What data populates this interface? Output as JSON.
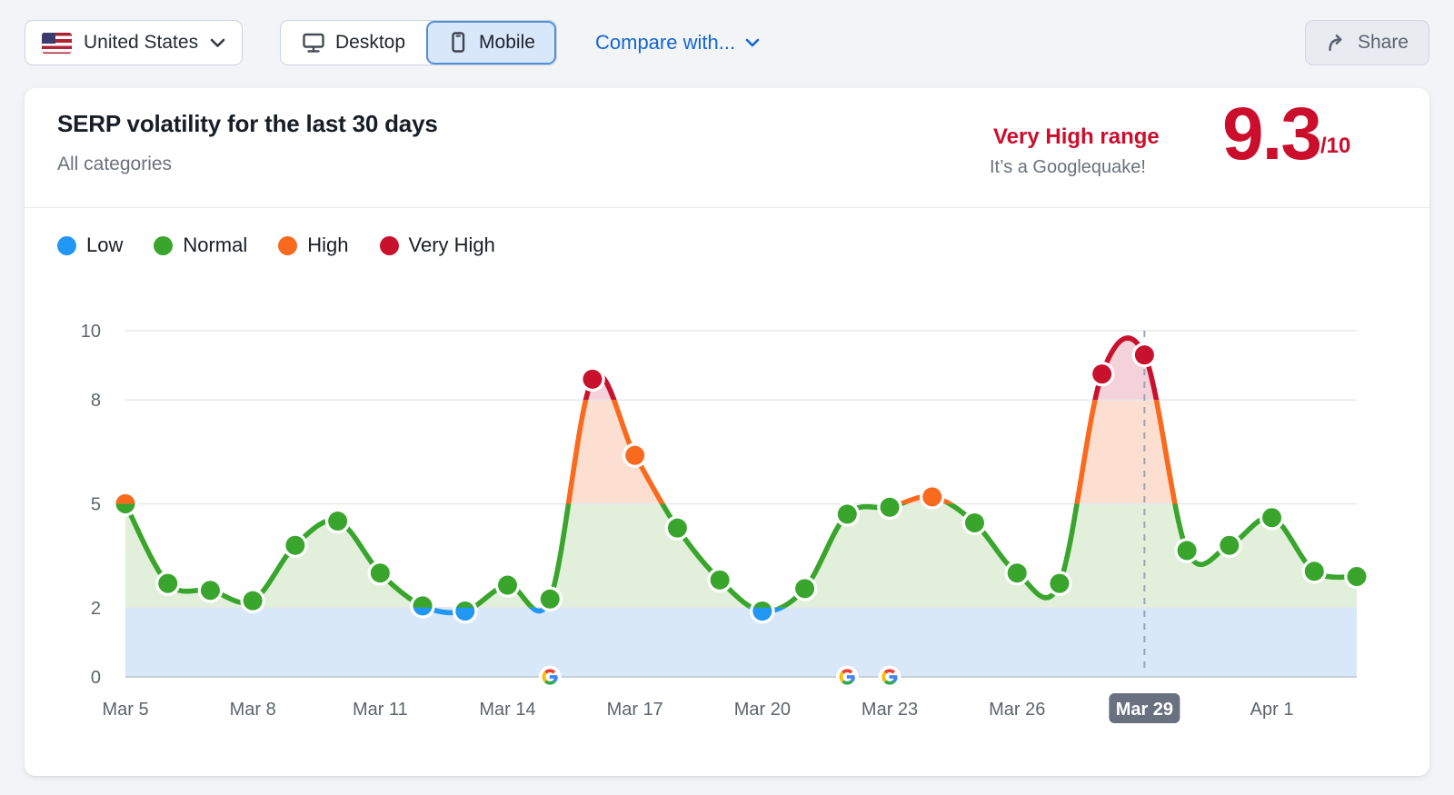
{
  "toolbar": {
    "country": "United States",
    "device_desktop": "Desktop",
    "device_mobile": "Mobile",
    "compare_label": "Compare with...",
    "share_label": "Share"
  },
  "header": {
    "title": "SERP volatility for the last 30 days",
    "subtitle": "All categories",
    "range_label": "Very High range",
    "range_note": "It’s a Googlequake!",
    "score": "9.3",
    "score_suffix": "/10"
  },
  "legend": [
    {
      "label": "Low",
      "color": "#2196f3"
    },
    {
      "label": "Normal",
      "color": "#3aa52d"
    },
    {
      "label": "High",
      "color": "#f96a1f"
    },
    {
      "label": "Very High",
      "color": "#c8122d"
    }
  ],
  "chart_data": {
    "type": "line",
    "title": "SERP volatility for the last 30 days",
    "x": [
      "Mar 5",
      "Mar 6",
      "Mar 7",
      "Mar 8",
      "Mar 9",
      "Mar 10",
      "Mar 11",
      "Mar 12",
      "Mar 13",
      "Mar 14",
      "Mar 15",
      "Mar 16",
      "Mar 17",
      "Mar 18",
      "Mar 19",
      "Mar 20",
      "Mar 21",
      "Mar 22",
      "Mar 23",
      "Mar 24",
      "Mar 25",
      "Mar 26",
      "Mar 27",
      "Mar 28",
      "Mar 29",
      "Mar 30",
      "Mar 31",
      "Apr 1",
      "Apr 2",
      "Apr 3"
    ],
    "values": [
      5.0,
      2.7,
      2.5,
      2.2,
      3.8,
      4.5,
      3.0,
      2.05,
      1.9,
      2.65,
      2.25,
      8.6,
      6.4,
      4.3,
      2.8,
      1.9,
      2.55,
      4.7,
      4.9,
      5.2,
      4.45,
      3.0,
      2.7,
      8.75,
      9.3,
      3.65,
      3.8,
      4.6,
      3.05,
      2.9
    ],
    "point_colors": [
      "high|normal",
      "normal",
      "normal",
      "normal",
      "normal",
      "normal",
      "normal",
      "normal|low",
      "normal|low",
      "normal",
      "normal",
      "very_high",
      "high",
      "normal",
      "normal",
      "normal|low",
      "normal",
      "normal",
      "normal",
      "high",
      "normal",
      "normal",
      "normal",
      "very_high",
      "very_high",
      "normal",
      "normal",
      "normal",
      "normal",
      "normal"
    ],
    "ylim": [
      0,
      10
    ],
    "yticks": [
      10,
      8,
      5,
      2,
      0
    ],
    "xticks": [
      0,
      3,
      6,
      9,
      12,
      15,
      18,
      21,
      24,
      27
    ],
    "selected_index": 24,
    "selected_label": "Mar 29",
    "google_update_indices": [
      10,
      17,
      18
    ],
    "zones": [
      {
        "key": "low",
        "range": [
          0,
          2
        ],
        "line": "#2196f3",
        "fill": "#d9e8f8"
      },
      {
        "key": "normal",
        "range": [
          2,
          5
        ],
        "line": "#3aa52d",
        "fill": "#e2efdb"
      },
      {
        "key": "high",
        "range": [
          5,
          8
        ],
        "line": "#f96a1f",
        "fill": "#fcdfd0"
      },
      {
        "key": "very_high",
        "range": [
          8,
          10
        ],
        "line": "#c8122d",
        "fill": "#f5d2d9"
      }
    ],
    "google_icon_colors": {
      "blue": "#4285F4",
      "red": "#EA4335",
      "yellow": "#FBBC05",
      "green": "#34A853"
    },
    "styles": {
      "grid_color": "#e5e8ec",
      "axis_line_color": "#c7cfd9",
      "tick_label_color": "#5d646e",
      "dashed_line_color": "#9aa5b1",
      "badge_bg": "#697180",
      "badge_text": "#ffffff"
    },
    "grid": true,
    "legend_position": "top-left"
  }
}
